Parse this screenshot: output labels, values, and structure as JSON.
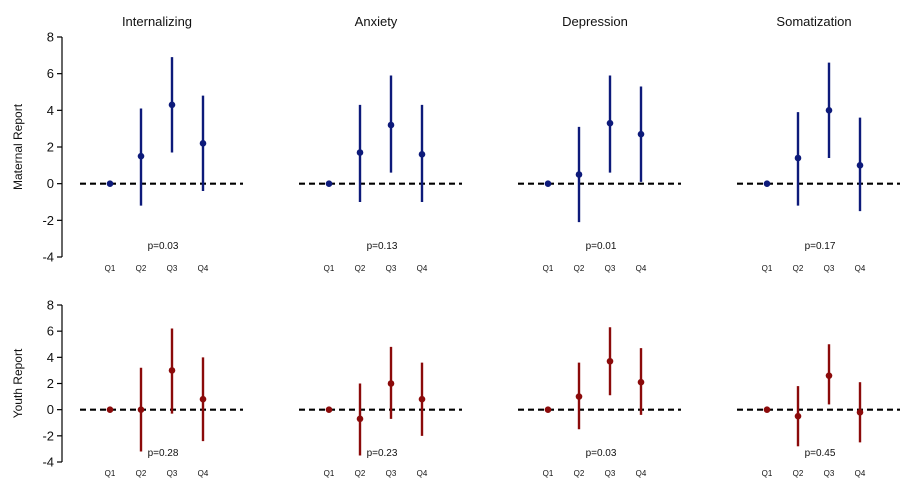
{
  "chart_data": {
    "type": "scatter",
    "description_style": "point-estimates-with-error-bars",
    "columns": [
      "Internalizing",
      "Anxiety",
      "Depression",
      "Somatization"
    ],
    "rows": [
      {
        "label": "Maternal Report",
        "color": "#0d1a7a",
        "ylim": [
          -4,
          8
        ],
        "yticks": [
          "-4",
          "-2",
          "0",
          "2",
          "4",
          "6",
          "8"
        ],
        "panels": [
          {
            "title": "Internalizing",
            "pvalue": "p=0.03",
            "categories": [
              "Q1",
              "Q2",
              "Q3",
              "Q4"
            ],
            "values": [
              0,
              1.5,
              4.3,
              2.2
            ],
            "lower": [
              0,
              -1.2,
              1.7,
              -0.4
            ],
            "upper": [
              0,
              4.1,
              6.9,
              4.8
            ]
          },
          {
            "title": "Anxiety",
            "pvalue": "p=0.13",
            "categories": [
              "Q1",
              "Q2",
              "Q3",
              "Q4"
            ],
            "values": [
              0,
              1.7,
              3.2,
              1.6
            ],
            "lower": [
              0,
              -1.0,
              0.6,
              -1.0
            ],
            "upper": [
              0,
              4.3,
              5.9,
              4.3
            ]
          },
          {
            "title": "Depression",
            "pvalue": "p=0.01",
            "categories": [
              "Q1",
              "Q2",
              "Q3",
              "Q4"
            ],
            "values": [
              0,
              0.5,
              3.3,
              2.7
            ],
            "lower": [
              0,
              -2.1,
              0.6,
              0.1
            ],
            "upper": [
              0,
              3.1,
              5.9,
              5.3
            ]
          },
          {
            "title": "Somatization",
            "pvalue": "p=0.17",
            "categories": [
              "Q1",
              "Q2",
              "Q3",
              "Q4"
            ],
            "values": [
              0,
              1.4,
              4.0,
              1.0
            ],
            "lower": [
              0,
              -1.2,
              1.4,
              -1.5
            ],
            "upper": [
              0,
              3.9,
              6.6,
              3.6
            ]
          }
        ]
      },
      {
        "label": "Youth Report",
        "color": "#8b0a0a",
        "ylim": [
          -4,
          8
        ],
        "yticks": [
          "-4",
          "-2",
          "0",
          "2",
          "4",
          "6",
          "8"
        ],
        "panels": [
          {
            "title": "Internalizing",
            "pvalue": "p=0.28",
            "categories": [
              "Q1",
              "Q2",
              "Q3",
              "Q4"
            ],
            "values": [
              0,
              0,
              3.0,
              0.8
            ],
            "lower": [
              0,
              -3.2,
              -0.3,
              -2.4
            ],
            "upper": [
              0,
              3.2,
              6.2,
              4.0
            ]
          },
          {
            "title": "Anxiety",
            "pvalue": "p=0.23",
            "categories": [
              "Q1",
              "Q2",
              "Q3",
              "Q4"
            ],
            "values": [
              0,
              -0.7,
              2.0,
              0.8
            ],
            "lower": [
              0,
              -3.5,
              -0.7,
              -2.0
            ],
            "upper": [
              0,
              2.0,
              4.8,
              3.6
            ]
          },
          {
            "title": "Depression",
            "pvalue": "p=0.03",
            "categories": [
              "Q1",
              "Q2",
              "Q3",
              "Q4"
            ],
            "values": [
              0,
              1.0,
              3.7,
              2.1
            ],
            "lower": [
              0,
              -1.5,
              1.1,
              -0.4
            ],
            "upper": [
              0,
              3.6,
              6.3,
              4.7
            ]
          },
          {
            "title": "Somatization",
            "pvalue": "p=0.45",
            "categories": [
              "Q1",
              "Q2",
              "Q3",
              "Q4"
            ],
            "values": [
              0,
              -0.5,
              2.6,
              -0.2
            ],
            "lower": [
              0,
              -2.8,
              0.4,
              -2.5
            ],
            "upper": [
              0,
              1.8,
              5.0,
              2.1
            ]
          }
        ]
      }
    ],
    "reference_line": {
      "y": 0,
      "style": "dashed"
    },
    "grid": false,
    "legend": "none"
  }
}
